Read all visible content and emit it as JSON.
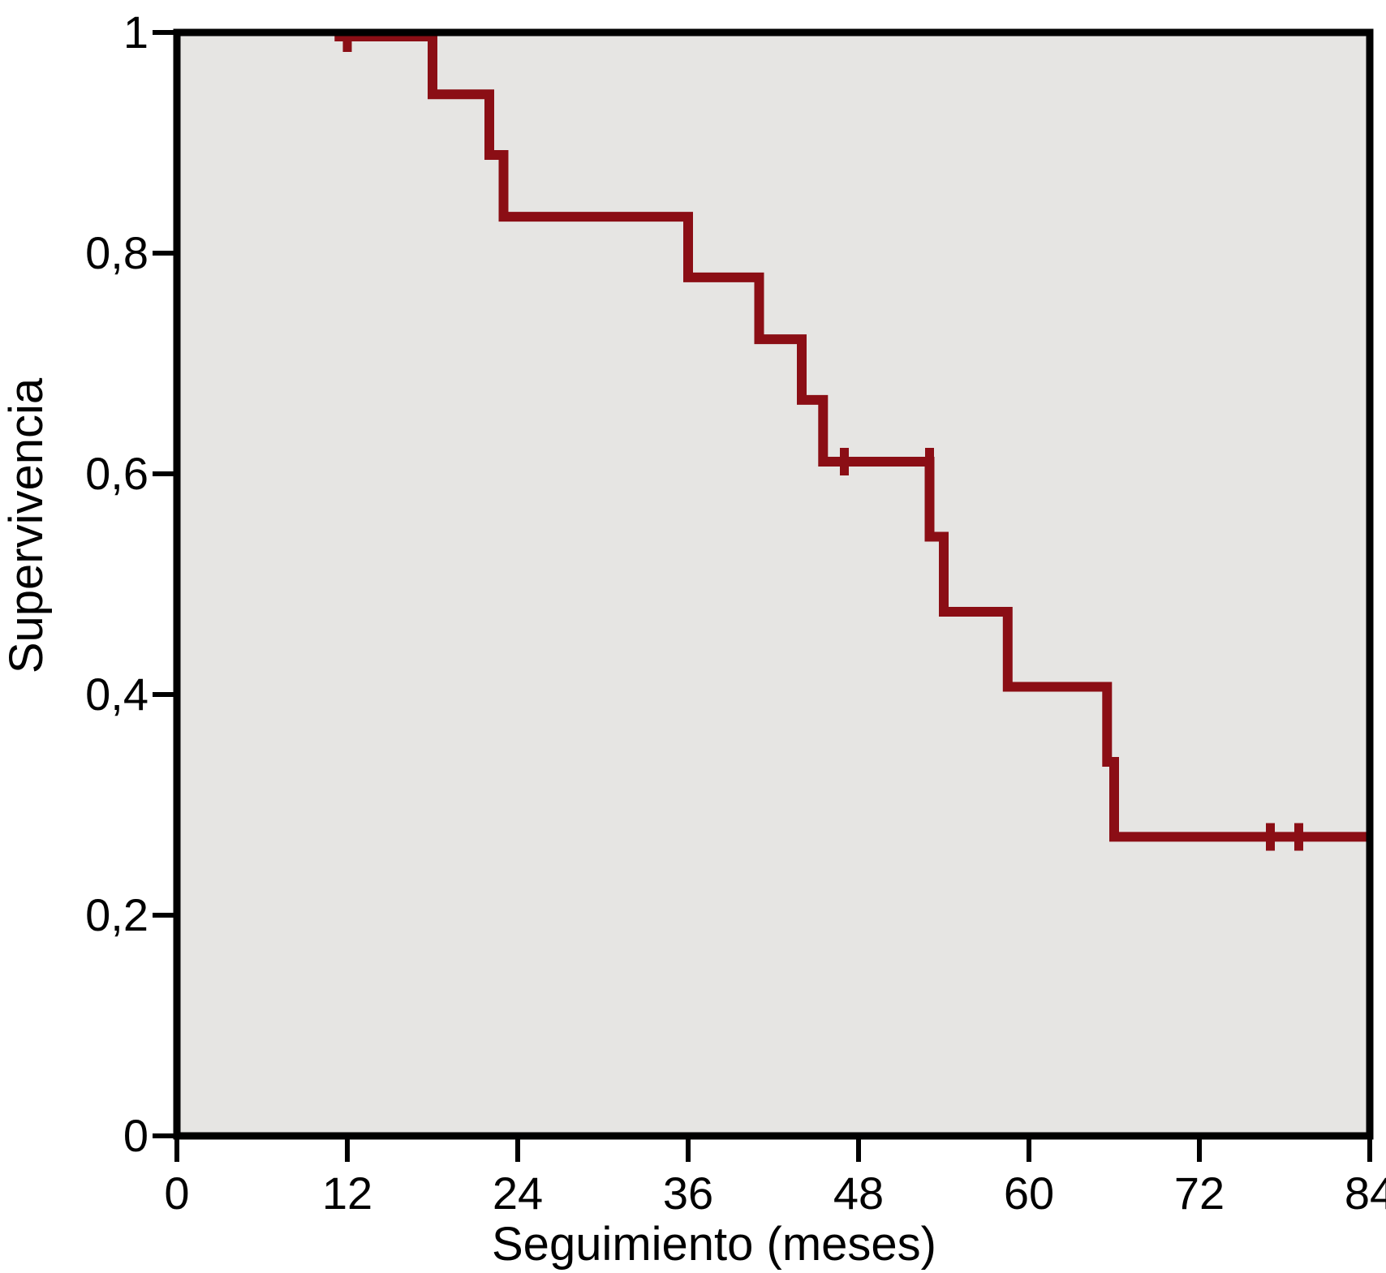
{
  "chart_data": {
    "type": "line",
    "subtype": "kaplan-meier-step-curve",
    "title": "",
    "xlabel": "Seguimiento (meses)",
    "ylabel": "Supervivencia",
    "xlim": [
      0,
      84
    ],
    "ylim": [
      0,
      1
    ],
    "x_ticks": [
      0,
      12,
      24,
      36,
      48,
      60,
      72,
      84
    ],
    "x_tick_labels": [
      "0",
      "12",
      "24",
      "36",
      "48",
      "60",
      "72",
      "84"
    ],
    "y_ticks": [
      0,
      0.2,
      0.4,
      0.6,
      0.8,
      1
    ],
    "y_tick_labels": [
      "0",
      "0,2",
      "0,4",
      "0,6",
      "0,8",
      "1"
    ],
    "grid": false,
    "legend": null,
    "colors": {
      "curve": "#8B0E15",
      "plot_background": "#E6E5E3",
      "axis": "#000000",
      "page_background": "#FFFFFF"
    },
    "series": [
      {
        "name": "Supervivencia",
        "visible_start_month": 11.1,
        "steps": [
          {
            "t": 11.1,
            "s": 1.0
          },
          {
            "t": 18.0,
            "s": 0.944
          },
          {
            "t": 22.0,
            "s": 0.889
          },
          {
            "t": 23.0,
            "s": 0.833
          },
          {
            "t": 36.0,
            "s": 0.778
          },
          {
            "t": 41.0,
            "s": 0.722
          },
          {
            "t": 44.0,
            "s": 0.667
          },
          {
            "t": 45.5,
            "s": 0.611
          },
          {
            "t": 53.0,
            "s": 0.543
          },
          {
            "t": 54.0,
            "s": 0.475
          },
          {
            "t": 58.5,
            "s": 0.407
          },
          {
            "t": 65.5,
            "s": 0.339
          },
          {
            "t": 66.0,
            "s": 0.271
          },
          {
            "t": 84.0,
            "s": 0.271
          }
        ],
        "censored": [
          {
            "t": 12.0,
            "s": 1.0
          },
          {
            "t": 47.0,
            "s": 0.611
          },
          {
            "t": 53.0,
            "s": 0.611
          },
          {
            "t": 77.0,
            "s": 0.271
          },
          {
            "t": 79.0,
            "s": 0.271
          }
        ]
      }
    ]
  }
}
